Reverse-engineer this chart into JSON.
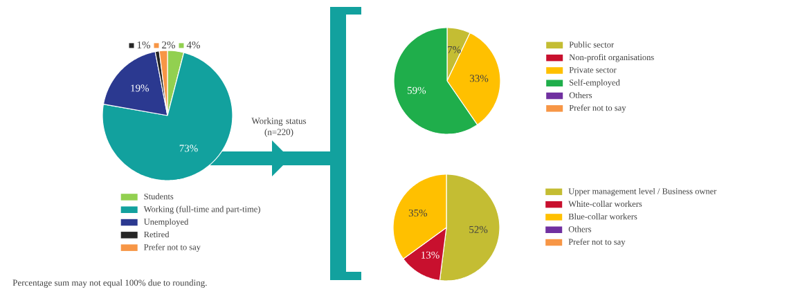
{
  "chart_data": [
    {
      "type": "pie",
      "categories": [
        "Students",
        "Working (full-time and part-time)",
        "Unemployed",
        "Retired",
        "Prefer not to say"
      ],
      "values": [
        4,
        73,
        19,
        1,
        2
      ],
      "colors": [
        "#92d050",
        "#12a19e",
        "#2b3990",
        "#262626",
        "#f79646"
      ],
      "value_labels": [
        "4%",
        "73%",
        "19%",
        "1%",
        "2%"
      ],
      "legend": "bottom",
      "annotations": [
        "Working status (n=220)",
        "Percentage sum may not equal 100% due to rounding."
      ]
    },
    {
      "type": "pie",
      "categories": [
        "Public sector",
        "Non-profit organisations",
        "Private sector",
        "Self-employed",
        "Others",
        "Prefer not to say"
      ],
      "values": [
        7,
        0,
        33,
        59,
        0,
        0
      ],
      "colors": [
        "#c4bd33",
        "#c8102e",
        "#ffc000",
        "#1fae4b",
        "#7030a0",
        "#f79646"
      ],
      "value_labels": [
        "7%",
        null,
        "33%",
        "59%",
        null,
        null
      ],
      "legend": "right"
    },
    {
      "type": "pie",
      "categories": [
        "Upper management level / Business owner",
        "White-collar workers",
        "Blue-collar workers",
        "Others",
        "Prefer not to say"
      ],
      "values": [
        52,
        13,
        35,
        0,
        0
      ],
      "colors": [
        "#c4bd33",
        "#c8102e",
        "#ffc000",
        "#7030a0",
        "#f79646"
      ],
      "value_labels": [
        "52%",
        "13%",
        "35%",
        null,
        null
      ],
      "legend": "right"
    }
  ]
}
